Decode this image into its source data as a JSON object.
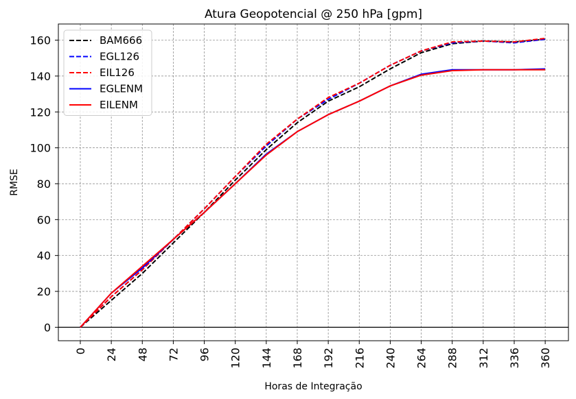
{
  "chart_data": {
    "type": "line",
    "title": "Atura Geopotencial @ 250 hPa [gpm]",
    "xlabel": "Horas de Integração",
    "ylabel": "RMSE",
    "x": [
      0,
      24,
      48,
      72,
      96,
      120,
      144,
      168,
      192,
      216,
      240,
      264,
      288,
      312,
      336,
      360
    ],
    "x_ticks": [
      "0",
      "24",
      "48",
      "72",
      "96",
      "120",
      "144",
      "168",
      "192",
      "216",
      "240",
      "264",
      "288",
      "312",
      "336",
      "360"
    ],
    "y_ticks": [
      "0",
      "20",
      "40",
      "60",
      "80",
      "100",
      "120",
      "140",
      "160"
    ],
    "xlim": [
      -17,
      378
    ],
    "ylim": [
      -7.5,
      169
    ],
    "grid": true,
    "zero_line": true,
    "legend_position": "upper-left",
    "series": [
      {
        "name": "BAM666",
        "color": "#000000",
        "dash": true,
        "values": [
          0,
          15,
          30,
          47,
          64,
          82,
          99,
          114,
          126,
          134,
          144,
          153,
          158,
          159.5,
          159,
          160.5
        ]
      },
      {
        "name": "EGL126",
        "color": "#0000ff",
        "dash": true,
        "values": [
          0,
          17,
          32,
          49,
          66,
          84,
          101,
          116,
          127,
          136,
          146,
          154,
          158.5,
          159.5,
          158.5,
          160.5
        ]
      },
      {
        "name": "EIL126",
        "color": "#ff0000",
        "dash": true,
        "values": [
          0,
          17,
          32,
          49,
          66,
          84,
          102,
          116,
          128,
          136,
          146,
          154,
          159,
          159.5,
          159,
          161
        ]
      },
      {
        "name": "EGLENM",
        "color": "#0000ff",
        "dash": false,
        "values": [
          0,
          19,
          33,
          49,
          64,
          80,
          96.5,
          109,
          118.5,
          126,
          134.5,
          141,
          143.5,
          143.5,
          143.5,
          144
        ]
      },
      {
        "name": "EILENM",
        "color": "#ff0000",
        "dash": false,
        "values": [
          0,
          19,
          34,
          49,
          64,
          80,
          96,
          109,
          118.5,
          126,
          134.5,
          140.5,
          143,
          143.5,
          143.5,
          143.5
        ]
      }
    ]
  }
}
